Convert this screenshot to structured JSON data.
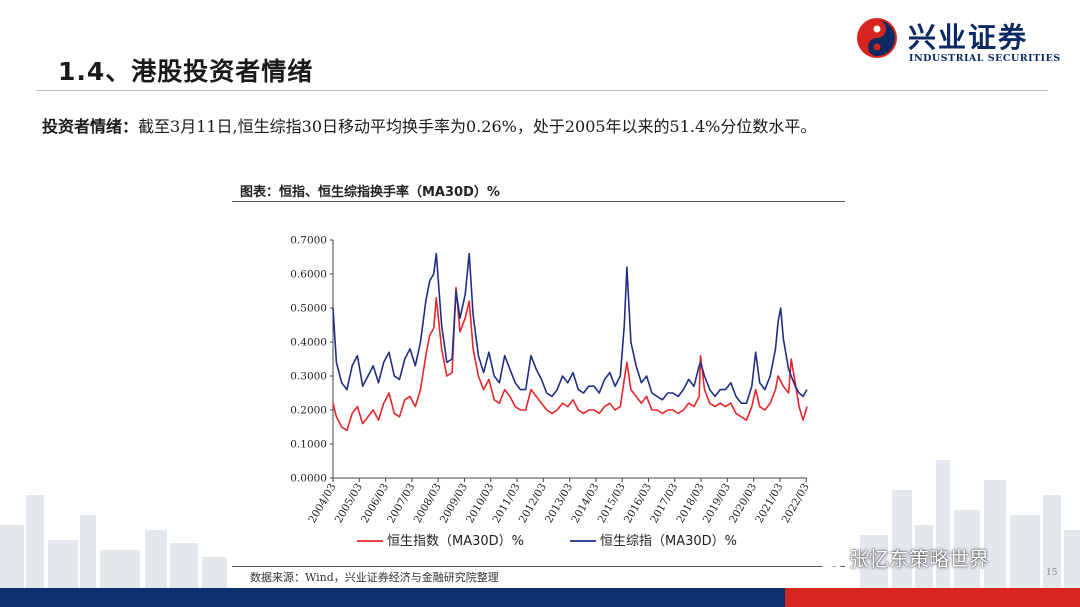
{
  "header": {
    "section_title": "1.4、港股投资者情绪",
    "logo_cn": "兴业证券",
    "logo_en": "INDUSTRIAL SECURITIES"
  },
  "summary": {
    "lead": "投资者情绪：",
    "text": "截至3月11日,恒生综指30日移动平均换手率为0.26%，处于2005年以来的51.4%分位数水平。"
  },
  "chart_title": "图表：恒指、恒生综指换手率（MA30D）%",
  "source": "数据来源：Wind，兴业证券经济与金融研究院整理",
  "page_number": "15",
  "watermark": "张忆东策略世界",
  "colors": {
    "series_hsi": "#e8262b",
    "series_composite": "#1f2f86",
    "navy": "#0d2f6e",
    "red": "#d6241f"
  },
  "chart_data": {
    "type": "line",
    "title": "图表：恒指、恒生综指换手率（MA30D）%",
    "ylim": [
      0.0,
      0.7
    ],
    "yticks": [
      "0.0000",
      "0.1000",
      "0.2000",
      "0.3000",
      "0.4000",
      "0.5000",
      "0.6000",
      "0.7000"
    ],
    "x_labels": [
      "2004/03",
      "2005/03",
      "2006/03",
      "2007/03",
      "2008/03",
      "2009/03",
      "2010/03",
      "2011/03",
      "2012/03",
      "2013/03",
      "2014/03",
      "2015/03",
      "2016/03",
      "2017/03",
      "2018/03",
      "2019/03",
      "2020/03",
      "2021/03",
      "2022/03"
    ],
    "x_start": 2004.17,
    "x_end": 2022.2,
    "legend_position": "bottom",
    "series": [
      {
        "name": "恒生指数（MA30D）%",
        "points": [
          [
            2004.17,
            0.22
          ],
          [
            2004.3,
            0.18
          ],
          [
            2004.5,
            0.15
          ],
          [
            2004.7,
            0.14
          ],
          [
            2004.9,
            0.19
          ],
          [
            2005.1,
            0.21
          ],
          [
            2005.3,
            0.16
          ],
          [
            2005.5,
            0.18
          ],
          [
            2005.7,
            0.2
          ],
          [
            2005.9,
            0.17
          ],
          [
            2006.1,
            0.22
          ],
          [
            2006.3,
            0.25
          ],
          [
            2006.5,
            0.19
          ],
          [
            2006.7,
            0.18
          ],
          [
            2006.9,
            0.23
          ],
          [
            2007.1,
            0.24
          ],
          [
            2007.3,
            0.21
          ],
          [
            2007.5,
            0.26
          ],
          [
            2007.7,
            0.36
          ],
          [
            2007.85,
            0.42
          ],
          [
            2008.0,
            0.44
          ],
          [
            2008.1,
            0.53
          ],
          [
            2008.3,
            0.38
          ],
          [
            2008.5,
            0.3
          ],
          [
            2008.7,
            0.31
          ],
          [
            2008.85,
            0.56
          ],
          [
            2009.0,
            0.43
          ],
          [
            2009.2,
            0.47
          ],
          [
            2009.35,
            0.52
          ],
          [
            2009.5,
            0.38
          ],
          [
            2009.7,
            0.3
          ],
          [
            2009.9,
            0.26
          ],
          [
            2010.1,
            0.29
          ],
          [
            2010.3,
            0.23
          ],
          [
            2010.5,
            0.22
          ],
          [
            2010.7,
            0.26
          ],
          [
            2010.9,
            0.24
          ],
          [
            2011.1,
            0.21
          ],
          [
            2011.3,
            0.2
          ],
          [
            2011.5,
            0.2
          ],
          [
            2011.7,
            0.26
          ],
          [
            2011.9,
            0.24
          ],
          [
            2012.1,
            0.22
          ],
          [
            2012.3,
            0.2
          ],
          [
            2012.5,
            0.19
          ],
          [
            2012.7,
            0.2
          ],
          [
            2012.9,
            0.22
          ],
          [
            2013.1,
            0.21
          ],
          [
            2013.3,
            0.23
          ],
          [
            2013.5,
            0.2
          ],
          [
            2013.7,
            0.19
          ],
          [
            2013.9,
            0.2
          ],
          [
            2014.1,
            0.2
          ],
          [
            2014.3,
            0.19
          ],
          [
            2014.5,
            0.21
          ],
          [
            2014.7,
            0.22
          ],
          [
            2014.9,
            0.2
          ],
          [
            2015.1,
            0.21
          ],
          [
            2015.25,
            0.29
          ],
          [
            2015.35,
            0.34
          ],
          [
            2015.5,
            0.26
          ],
          [
            2015.7,
            0.24
          ],
          [
            2015.9,
            0.22
          ],
          [
            2016.1,
            0.24
          ],
          [
            2016.3,
            0.2
          ],
          [
            2016.5,
            0.2
          ],
          [
            2016.7,
            0.19
          ],
          [
            2016.9,
            0.2
          ],
          [
            2017.1,
            0.2
          ],
          [
            2017.3,
            0.19
          ],
          [
            2017.5,
            0.2
          ],
          [
            2017.7,
            0.22
          ],
          [
            2017.9,
            0.21
          ],
          [
            2018.1,
            0.24
          ],
          [
            2018.15,
            0.36
          ],
          [
            2018.3,
            0.26
          ],
          [
            2018.5,
            0.22
          ],
          [
            2018.7,
            0.21
          ],
          [
            2018.9,
            0.22
          ],
          [
            2019.1,
            0.21
          ],
          [
            2019.3,
            0.22
          ],
          [
            2019.5,
            0.19
          ],
          [
            2019.7,
            0.18
          ],
          [
            2019.9,
            0.17
          ],
          [
            2020.1,
            0.21
          ],
          [
            2020.25,
            0.26
          ],
          [
            2020.4,
            0.21
          ],
          [
            2020.6,
            0.2
          ],
          [
            2020.8,
            0.22
          ],
          [
            2021.0,
            0.26
          ],
          [
            2021.1,
            0.3
          ],
          [
            2021.3,
            0.27
          ],
          [
            2021.5,
            0.25
          ],
          [
            2021.6,
            0.35
          ],
          [
            2021.75,
            0.28
          ],
          [
            2021.9,
            0.21
          ],
          [
            2022.05,
            0.17
          ],
          [
            2022.2,
            0.21
          ]
        ]
      },
      {
        "name": "恒生综指（MA30D）%",
        "points": [
          [
            2004.17,
            0.5
          ],
          [
            2004.3,
            0.34
          ],
          [
            2004.5,
            0.28
          ],
          [
            2004.7,
            0.26
          ],
          [
            2004.9,
            0.33
          ],
          [
            2005.1,
            0.36
          ],
          [
            2005.3,
            0.27
          ],
          [
            2005.5,
            0.3
          ],
          [
            2005.7,
            0.33
          ],
          [
            2005.9,
            0.28
          ],
          [
            2006.1,
            0.34
          ],
          [
            2006.3,
            0.37
          ],
          [
            2006.5,
            0.3
          ],
          [
            2006.7,
            0.29
          ],
          [
            2006.9,
            0.35
          ],
          [
            2007.1,
            0.38
          ],
          [
            2007.3,
            0.33
          ],
          [
            2007.5,
            0.4
          ],
          [
            2007.7,
            0.52
          ],
          [
            2007.85,
            0.58
          ],
          [
            2008.0,
            0.6
          ],
          [
            2008.1,
            0.66
          ],
          [
            2008.3,
            0.45
          ],
          [
            2008.5,
            0.34
          ],
          [
            2008.7,
            0.35
          ],
          [
            2008.85,
            0.55
          ],
          [
            2009.0,
            0.47
          ],
          [
            2009.2,
            0.54
          ],
          [
            2009.35,
            0.66
          ],
          [
            2009.5,
            0.48
          ],
          [
            2009.7,
            0.36
          ],
          [
            2009.9,
            0.31
          ],
          [
            2010.1,
            0.37
          ],
          [
            2010.3,
            0.3
          ],
          [
            2010.5,
            0.28
          ],
          [
            2010.7,
            0.36
          ],
          [
            2010.9,
            0.32
          ],
          [
            2011.1,
            0.28
          ],
          [
            2011.3,
            0.26
          ],
          [
            2011.5,
            0.26
          ],
          [
            2011.7,
            0.36
          ],
          [
            2011.9,
            0.32
          ],
          [
            2012.1,
            0.29
          ],
          [
            2012.3,
            0.25
          ],
          [
            2012.5,
            0.24
          ],
          [
            2012.7,
            0.26
          ],
          [
            2012.9,
            0.3
          ],
          [
            2013.1,
            0.28
          ],
          [
            2013.3,
            0.31
          ],
          [
            2013.5,
            0.26
          ],
          [
            2013.7,
            0.25
          ],
          [
            2013.9,
            0.27
          ],
          [
            2014.1,
            0.27
          ],
          [
            2014.3,
            0.25
          ],
          [
            2014.5,
            0.29
          ],
          [
            2014.7,
            0.31
          ],
          [
            2014.9,
            0.27
          ],
          [
            2015.1,
            0.3
          ],
          [
            2015.25,
            0.45
          ],
          [
            2015.35,
            0.62
          ],
          [
            2015.5,
            0.4
          ],
          [
            2015.7,
            0.33
          ],
          [
            2015.9,
            0.28
          ],
          [
            2016.1,
            0.3
          ],
          [
            2016.3,
            0.25
          ],
          [
            2016.5,
            0.24
          ],
          [
            2016.7,
            0.23
          ],
          [
            2016.9,
            0.25
          ],
          [
            2017.1,
            0.25
          ],
          [
            2017.3,
            0.24
          ],
          [
            2017.5,
            0.26
          ],
          [
            2017.7,
            0.29
          ],
          [
            2017.9,
            0.27
          ],
          [
            2018.1,
            0.33
          ],
          [
            2018.15,
            0.34
          ],
          [
            2018.3,
            0.3
          ],
          [
            2018.5,
            0.26
          ],
          [
            2018.7,
            0.24
          ],
          [
            2018.9,
            0.26
          ],
          [
            2019.1,
            0.26
          ],
          [
            2019.3,
            0.28
          ],
          [
            2019.5,
            0.24
          ],
          [
            2019.7,
            0.22
          ],
          [
            2019.9,
            0.22
          ],
          [
            2020.1,
            0.27
          ],
          [
            2020.25,
            0.37
          ],
          [
            2020.4,
            0.28
          ],
          [
            2020.6,
            0.26
          ],
          [
            2020.8,
            0.3
          ],
          [
            2021.0,
            0.38
          ],
          [
            2021.1,
            0.46
          ],
          [
            2021.2,
            0.5
          ],
          [
            2021.3,
            0.41
          ],
          [
            2021.5,
            0.32
          ],
          [
            2021.6,
            0.3
          ],
          [
            2021.75,
            0.27
          ],
          [
            2021.9,
            0.25
          ],
          [
            2022.05,
            0.24
          ],
          [
            2022.2,
            0.26
          ]
        ]
      }
    ]
  }
}
